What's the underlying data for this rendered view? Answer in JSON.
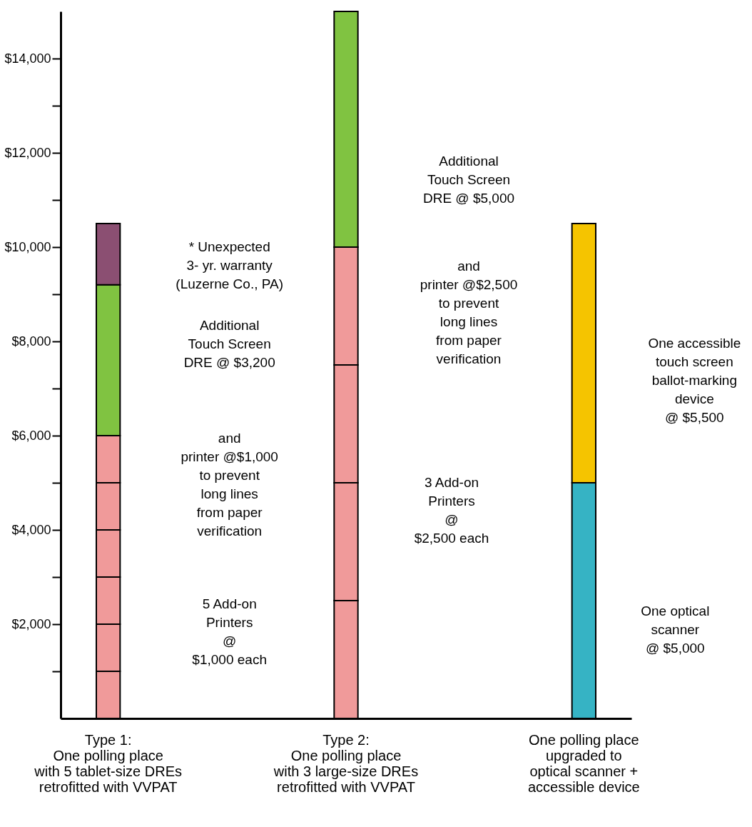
{
  "chart_data": {
    "type": "bar",
    "stacked": true,
    "categories": [
      "Type 1:\nOne polling place\nwith 5 tablet-size DREs\nretrofitted with VVPAT",
      "Type 2:\nOne polling place\nwith 3 large-size DREs\nretrofitted with VVPAT",
      "One polling place\nupgraded to\noptical scanner +\naccessible device"
    ],
    "series": [
      {
        "color": "#f09a9a",
        "values": [
          1000,
          2500,
          null
        ]
      },
      {
        "color": "#f09a9a",
        "values": [
          1000,
          2500,
          null
        ]
      },
      {
        "color": "#f09a9a",
        "values": [
          1000,
          2500,
          null
        ]
      },
      {
        "color": "#f09a9a",
        "values": [
          1000,
          null,
          null
        ]
      },
      {
        "color": "#f09a9a",
        "values": [
          1000,
          null,
          null
        ]
      },
      {
        "color": "#f09a9a",
        "values": [
          1000,
          2500,
          null
        ]
      },
      {
        "color": "#80c341",
        "values": [
          3200,
          5000,
          null
        ]
      },
      {
        "color": "#8b4f72",
        "values": [
          1300,
          null,
          null
        ]
      },
      {
        "color": "#36b3c4",
        "values": [
          null,
          null,
          5000
        ]
      },
      {
        "color": "#f5c400",
        "values": [
          null,
          null,
          5500
        ]
      }
    ],
    "ylim": [
      0,
      15000
    ],
    "yticks": [
      {
        "value": 1000,
        "label": null
      },
      {
        "value": 2000,
        "label": "$2,000"
      },
      {
        "value": 3000,
        "label": null
      },
      {
        "value": 4000,
        "label": "$4,000"
      },
      {
        "value": 5000,
        "label": null
      },
      {
        "value": 6000,
        "label": "$6,000"
      },
      {
        "value": 7000,
        "label": null
      },
      {
        "value": 8000,
        "label": "$8,000"
      },
      {
        "value": 9000,
        "label": null
      },
      {
        "value": 10000,
        "label": "$10,000"
      },
      {
        "value": 11000,
        "label": null
      },
      {
        "value": 12000,
        "label": "$12,000"
      },
      {
        "value": 13000,
        "label": null
      },
      {
        "value": 14000,
        "label": "$14,000"
      }
    ],
    "grid": false,
    "legend": false,
    "annotations": [
      "* Unexpected\n3- yr. warranty\n(Luzerne Co., PA)",
      "Additional\nTouch Screen\nDRE @ $3,200",
      "and\nprinter @$1,000\nto prevent\nlong lines\nfrom paper\nverification",
      "5 Add-on\nPrinters\n@\n$1,000 each",
      "Additional\nTouch Screen\nDRE @ $5,000",
      "and\nprinter @$2,500\nto prevent\nlong lines\nfrom paper\nverification",
      "3 Add-on\nPrinters\n@\n$2,500 each",
      "One accessible\ntouch screen\nballot-marking\ndevice\n@ $5,500",
      "One optical\nscanner\n@ $5,000"
    ]
  }
}
